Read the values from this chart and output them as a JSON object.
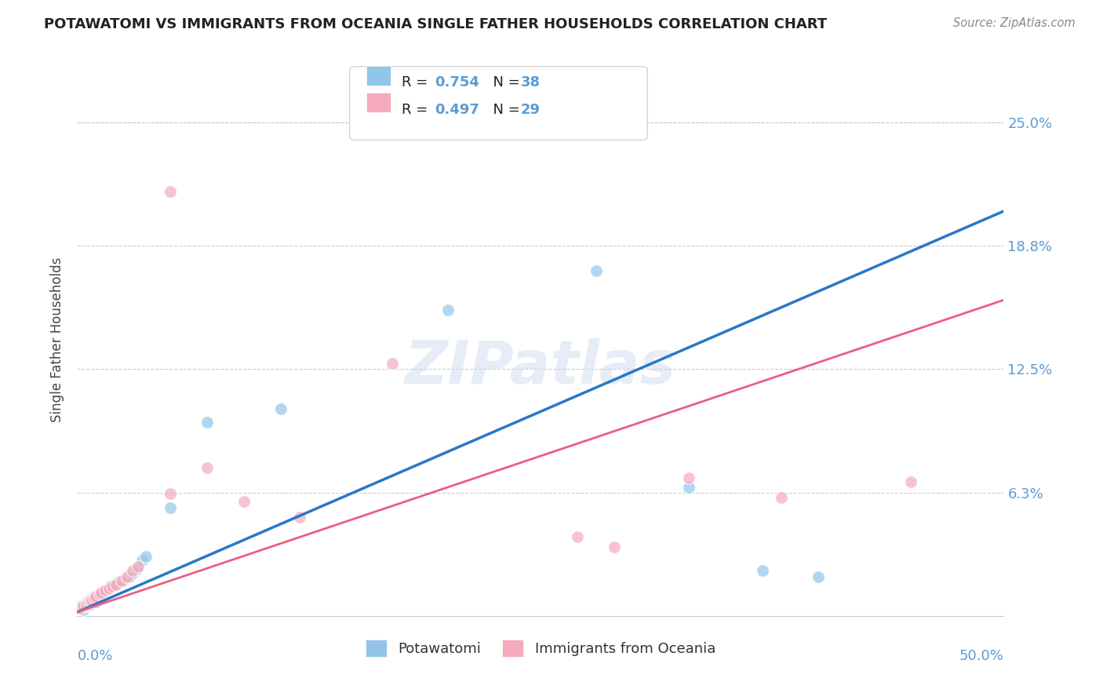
{
  "title": "POTAWATOMI VS IMMIGRANTS FROM OCEANIA SINGLE FATHER HOUSEHOLDS CORRELATION CHART",
  "source": "Source: ZipAtlas.com",
  "ylabel": "Single Father Households",
  "xlim": [
    0,
    0.5
  ],
  "ylim": [
    0,
    0.28
  ],
  "yticks": [
    0.0,
    0.0625,
    0.125,
    0.1875,
    0.25
  ],
  "ytick_labels": [
    "",
    "6.3%",
    "12.5%",
    "18.8%",
    "25.0%"
  ],
  "legend_r1": "R = 0.754",
  "legend_n1": "N = 38",
  "legend_r2": "R = 0.497",
  "legend_n2": "N = 29",
  "color_blue": "#92c5e8",
  "color_pink": "#f4aabc",
  "color_blue_line": "#2878c8",
  "color_pink_line": "#e86080",
  "color_axis_text": "#5b9bd5",
  "color_dark_text": "#222222",
  "color_grid": "#cccccc",
  "blue_scatter_x": [
    0.002,
    0.003,
    0.004,
    0.005,
    0.005,
    0.006,
    0.007,
    0.007,
    0.008,
    0.008,
    0.009,
    0.009,
    0.01,
    0.01,
    0.011,
    0.012,
    0.013,
    0.014,
    0.015,
    0.016,
    0.017,
    0.018,
    0.02,
    0.022,
    0.025,
    0.028,
    0.03,
    0.032,
    0.035,
    0.037,
    0.05,
    0.07,
    0.11,
    0.2,
    0.28,
    0.33,
    0.37,
    0.4
  ],
  "blue_scatter_y": [
    0.005,
    0.003,
    0.006,
    0.007,
    0.005,
    0.008,
    0.008,
    0.006,
    0.009,
    0.007,
    0.01,
    0.008,
    0.01,
    0.007,
    0.01,
    0.011,
    0.012,
    0.012,
    0.013,
    0.013,
    0.014,
    0.015,
    0.016,
    0.017,
    0.018,
    0.02,
    0.022,
    0.024,
    0.028,
    0.03,
    0.055,
    0.098,
    0.105,
    0.155,
    0.175,
    0.065,
    0.023,
    0.02
  ],
  "pink_scatter_x": [
    0.002,
    0.003,
    0.005,
    0.006,
    0.007,
    0.008,
    0.009,
    0.01,
    0.012,
    0.013,
    0.015,
    0.017,
    0.019,
    0.021,
    0.024,
    0.027,
    0.03,
    0.033,
    0.05,
    0.07,
    0.09,
    0.12,
    0.17,
    0.33,
    0.38,
    0.45,
    0.27,
    0.29,
    0.05
  ],
  "pink_scatter_y": [
    0.004,
    0.005,
    0.006,
    0.007,
    0.008,
    0.008,
    0.009,
    0.01,
    0.011,
    0.012,
    0.013,
    0.014,
    0.015,
    0.016,
    0.018,
    0.02,
    0.023,
    0.025,
    0.062,
    0.075,
    0.058,
    0.05,
    0.128,
    0.07,
    0.06,
    0.068,
    0.04,
    0.035,
    0.215
  ],
  "blue_line_x": [
    0.0,
    0.5
  ],
  "blue_line_y": [
    0.002,
    0.205
  ],
  "pink_line_x": [
    0.0,
    0.5
  ],
  "pink_line_y": [
    0.002,
    0.16
  ]
}
